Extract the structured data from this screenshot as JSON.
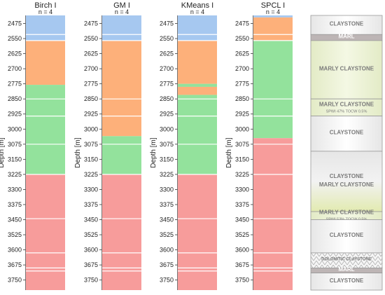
{
  "chart_data": {
    "type": "bar",
    "ylabel": "Depth [m]",
    "ylim": [
      2435,
      3800
    ],
    "yticks": [
      2475,
      2550,
      2625,
      2700,
      2775,
      2850,
      2925,
      3000,
      3075,
      3150,
      3225,
      3300,
      3375,
      3450,
      3525,
      3600,
      3675,
      3750
    ],
    "cluster_colors": {
      "c1": "#a6c8f0",
      "c2": "#fdb07a",
      "c3": "#93e29c",
      "c4": "#f79c9b"
    },
    "panels": [
      {
        "title": "Birch I",
        "subtitle": "n = 4",
        "segments": [
          {
            "from": 2435,
            "to": 2560,
            "cluster": "c1"
          },
          {
            "from": 2560,
            "to": 2780,
            "cluster": "c2"
          },
          {
            "from": 2780,
            "to": 3225,
            "cluster": "c3"
          },
          {
            "from": 3225,
            "to": 3800,
            "cluster": "c4"
          }
        ]
      },
      {
        "title": "GM I",
        "subtitle": "n = 4",
        "segments": [
          {
            "from": 2435,
            "to": 2560,
            "cluster": "c1"
          },
          {
            "from": 2560,
            "to": 3035,
            "cluster": "c2"
          },
          {
            "from": 3035,
            "to": 3225,
            "cluster": "c3"
          },
          {
            "from": 3225,
            "to": 3800,
            "cluster": "c4"
          }
        ]
      },
      {
        "title": "KMeans I",
        "subtitle": "n = 4",
        "segments": [
          {
            "from": 2435,
            "to": 2560,
            "cluster": "c1"
          },
          {
            "from": 2560,
            "to": 2775,
            "cluster": "c2"
          },
          {
            "from": 2775,
            "to": 2790,
            "cluster": "c3"
          },
          {
            "from": 2790,
            "to": 2830,
            "cluster": "c2"
          },
          {
            "from": 2830,
            "to": 3225,
            "cluster": "c3"
          },
          {
            "from": 3225,
            "to": 3800,
            "cluster": "c4"
          }
        ]
      },
      {
        "title": "SPCL I",
        "subtitle": "n = 4",
        "segments": [
          {
            "from": 2435,
            "to": 2445,
            "cluster": "c1"
          },
          {
            "from": 2445,
            "to": 2560,
            "cluster": "c2"
          },
          {
            "from": 2560,
            "to": 3045,
            "cluster": "c3"
          },
          {
            "from": 3045,
            "to": 3800,
            "cluster": "c4"
          }
        ]
      }
    ],
    "white_lines": [
      2530,
      2560,
      2850,
      2935,
      3075,
      3225,
      3445,
      3615,
      3690,
      3705
    ],
    "lithology": [
      {
        "from": 2435,
        "to": 2530,
        "label": "CLAYSTONE",
        "note": "",
        "style": "claystone"
      },
      {
        "from": 2530,
        "to": 2560,
        "label": "MARL",
        "note": "",
        "style": "marl"
      },
      {
        "from": 2560,
        "to": 2850,
        "label": "MARLY CLAYSTONE",
        "note": "",
        "style": "marly"
      },
      {
        "from": 2850,
        "to": 2935,
        "label": "MARLY CLAYSTONE",
        "note": "SPWI 47% TOCW 0.5%",
        "style": "marly"
      },
      {
        "from": 2935,
        "to": 3110,
        "label": "CLAYSTONE",
        "note": "",
        "style": "claystone"
      },
      {
        "from": 3110,
        "to": 3410,
        "label": "CLAYSTONE\nMARLY CLAYSTONE",
        "note": "",
        "style": "gradient"
      },
      {
        "from": 3410,
        "to": 3450,
        "label": "MARLY CLAYSTONE",
        "note": "SPWI 53% TOCW 0.5%",
        "style": "marly"
      },
      {
        "from": 3450,
        "to": 3615,
        "label": "CLAYSTONE",
        "note": "",
        "style": "claystone"
      },
      {
        "from": 3615,
        "to": 3690,
        "label": "DOLOMITIC CLAYSTONE",
        "note": "",
        "style": "dolomitic"
      },
      {
        "from": 3690,
        "to": 3715,
        "label": "MARL",
        "note": "",
        "style": "marl"
      },
      {
        "from": 3715,
        "to": 3800,
        "label": "CLAYSTONE",
        "note": "",
        "style": "claystone"
      }
    ]
  }
}
